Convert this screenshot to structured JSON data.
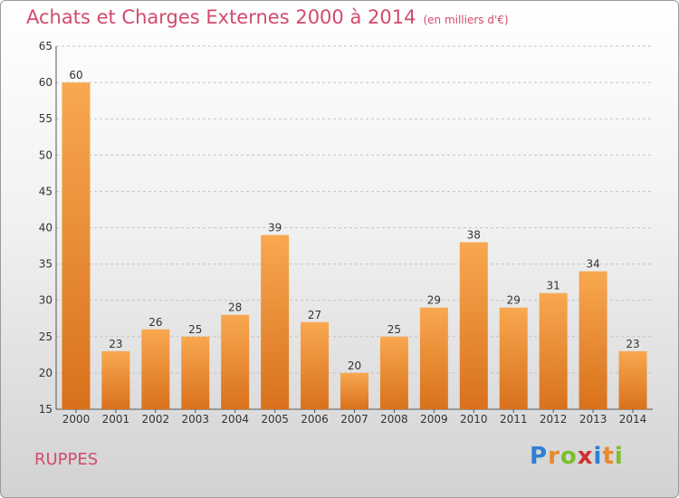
{
  "chart_data": {
    "type": "bar",
    "title": "Achats et Charges Externes 2000 à 2014",
    "subtitle": "(en milliers d'€)",
    "categories": [
      "2000",
      "2001",
      "2002",
      "2003",
      "2004",
      "2005",
      "2006",
      "2007",
      "2008",
      "2009",
      "2010",
      "2011",
      "2012",
      "2013",
      "2014"
    ],
    "values": [
      60,
      23,
      26,
      25,
      28,
      39,
      27,
      20,
      25,
      29,
      38,
      29,
      31,
      34,
      23
    ],
    "ylim": [
      15,
      65
    ],
    "yticks": [
      15,
      20,
      25,
      30,
      35,
      40,
      45,
      50,
      55,
      60,
      65
    ],
    "grid": true,
    "bar_color": "#f0943a"
  },
  "footer": {
    "place": "RUPPES",
    "logo": [
      "P",
      "r",
      "o",
      "x",
      "i",
      "t",
      "i"
    ]
  }
}
